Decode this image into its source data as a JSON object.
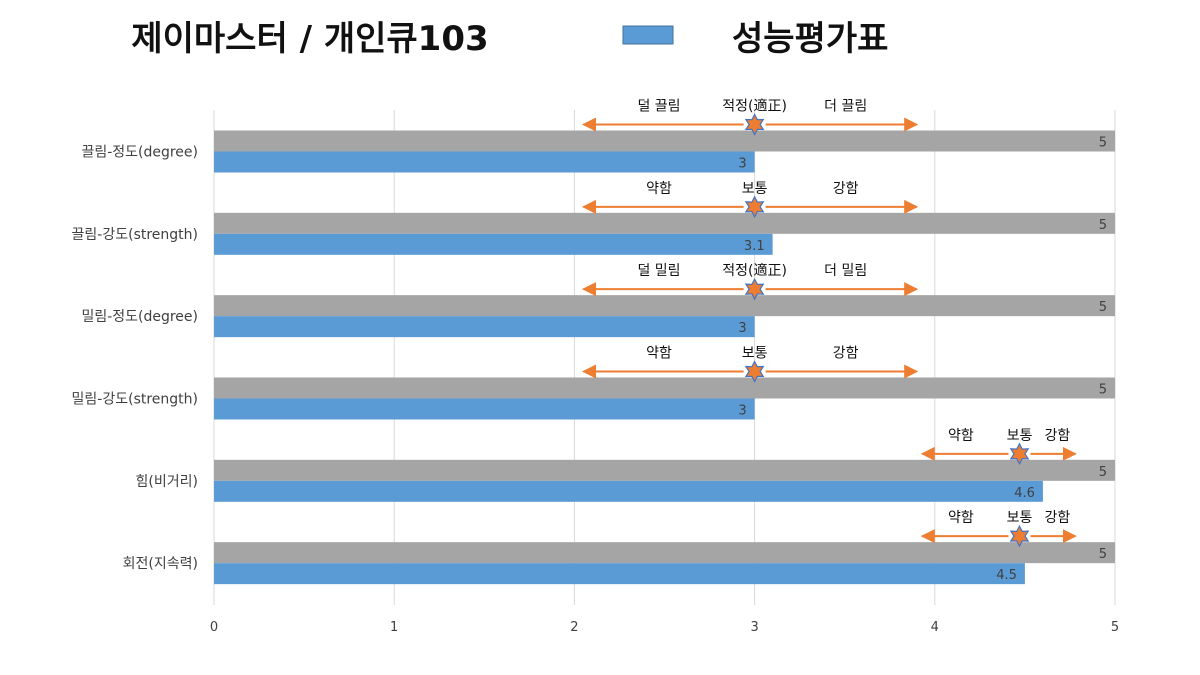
{
  "chart_data": {
    "type": "bar",
    "orientation": "horizontal",
    "title": "제이마스터 / 개인큐103",
    "categories": [
      "끌림-정도(degree)",
      "끌림-강도(strength)",
      "밀림-정도(degree)",
      "밀림-강도(strength)",
      "힘(비거리)",
      "회전(지속력)"
    ],
    "series": [
      {
        "name": "",
        "color": "#a5a5a5",
        "values": [
          5,
          5,
          5,
          5,
          5,
          5
        ]
      },
      {
        "name": "성능평가표",
        "color": "#5b9bd5",
        "values": [
          3,
          3.1,
          3,
          3,
          4.6,
          4.5
        ]
      }
    ],
    "value_labels": {
      "gray": [
        "5",
        "5",
        "5",
        "5",
        "5",
        "5"
      ],
      "blue": [
        "3",
        "3.1",
        "3",
        "3",
        "4.6",
        "4.5"
      ]
    },
    "xlim": [
      0,
      5
    ],
    "x_ticks": [
      "0",
      "1",
      "2",
      "3",
      "4",
      "5"
    ],
    "grid": true,
    "legend": {
      "position": "top",
      "label": "성능평가표",
      "color": "#5b9bd5"
    },
    "annotation_color": "#ed7d31",
    "annotations": [
      {
        "left": "덜 끌림",
        "center": "적정(適正)",
        "right": "더 끌림",
        "marker": 3,
        "from": 2.05,
        "to": 3.9
      },
      {
        "left": "약함",
        "center": "보통",
        "right": "강함",
        "marker": 3,
        "from": 2.05,
        "to": 3.9
      },
      {
        "left": "덜 밀림",
        "center": "적정(適正)",
        "right": "더 밀림",
        "marker": 3,
        "from": 2.05,
        "to": 3.9
      },
      {
        "left": "약함",
        "center": "보통",
        "right": "강함",
        "marker": 3,
        "from": 2.05,
        "to": 3.9
      },
      {
        "left": "약함",
        "center": "보통",
        "right": "강함",
        "marker": 4.47,
        "from": 3.93,
        "to": 4.78
      },
      {
        "left": "약함",
        "center": "보통",
        "right": "강함",
        "marker": 4.47,
        "from": 3.93,
        "to": 4.78
      }
    ]
  }
}
